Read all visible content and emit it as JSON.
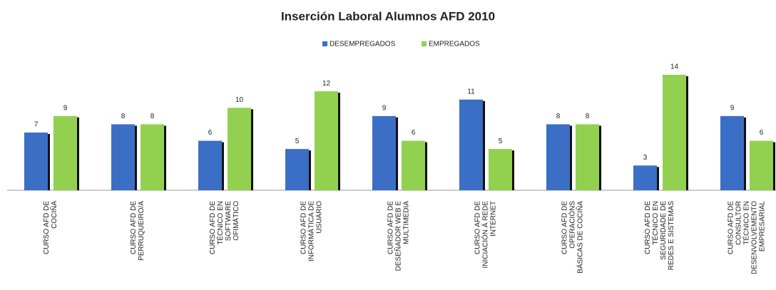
{
  "chart_data": {
    "type": "bar",
    "title": "Inserción Laboral Alumnos AFD 2010",
    "categories": [
      "CURSO AFD DE\nCOCIÑA",
      "CURSO AFD DE\nPERRUQUEIRO/A",
      "CURSO AFD DE\nTÉCNICO EN\nSOFTWARE\nOFIMÁTICO",
      "CURSO AFD DE\nINFORMÁTICA DE\nUSUARIO",
      "CURSO AFD DE\nDESEÑADOR WEB E\nMULTIMEDIA",
      "CURSO AFD DE\nINICIACIÓN Á REDE\nINTERNET",
      "CURSO AFD DE\nOPERACIÓNS\nBÁSICAS DE COCIÑA",
      "CURSO AFD DE\nTÉCNICO EN\nSEGURIDADE DE\nREDES E SISTEMAS",
      "CURSO AFD DE\nCONSULTOR\nTÉCNICO EN\nDESENVOLVEMENTO\nEMPRESARIAL"
    ],
    "series": [
      {
        "name": "DESEMPREGADOS",
        "color": "#3b6fc6",
        "values": [
          7,
          8,
          6,
          5,
          9,
          11,
          8,
          3,
          9
        ]
      },
      {
        "name": "EMPREGADOS",
        "color": "#92d050",
        "values": [
          9,
          8,
          10,
          12,
          6,
          5,
          8,
          14,
          6
        ]
      }
    ],
    "ylim": [
      0,
      14
    ]
  }
}
